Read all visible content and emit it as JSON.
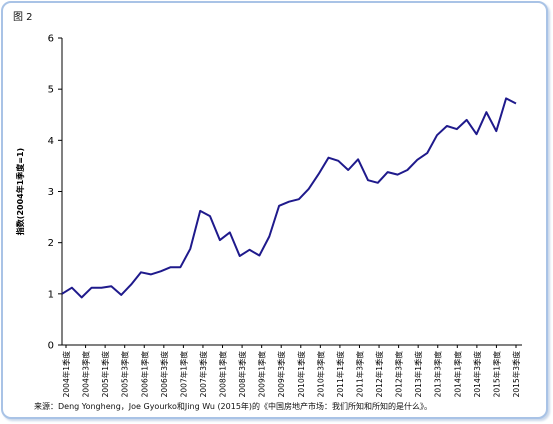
{
  "figure_label": "图 2",
  "source_note": "来源：Deng Yongheng，Joe Gyourko和Jing Wu (2015年)的《中国房地产市场：我们所知和所知的是什么》。",
  "chart_data": {
    "type": "line",
    "title": "",
    "xlabel": "",
    "ylabel": "指数(2004年1季度=1)",
    "ylim": [
      0,
      6
    ],
    "yticks": [
      0,
      1,
      2,
      3,
      4,
      5,
      6
    ],
    "grid": false,
    "legend": "none",
    "line_color": "#1f1a8c",
    "x_tick_labels": [
      "2004年1季度",
      "2004年3季度",
      "2005年1季度",
      "2005年3季度",
      "2006年1季度",
      "2006年3季度",
      "2007年1季度",
      "2007年3季度",
      "2008年1季度",
      "2008年3季度",
      "2009年1季度",
      "2009年3季度",
      "2010年1季度",
      "2010年3季度",
      "2011年1季度",
      "2011年3季度",
      "2012年1季度",
      "2012年3季度",
      "2013年1季度",
      "2013年3季度",
      "2014年1季度",
      "2014年3季度",
      "2015年1季度",
      "2015年3季度"
    ],
    "series": [
      {
        "values": [
          1.0,
          1.12,
          0.93,
          1.12,
          1.12,
          1.15,
          0.98,
          1.18,
          1.42,
          1.38,
          1.44,
          1.52,
          1.52,
          1.88,
          2.62,
          2.52,
          2.05,
          2.2,
          1.74,
          1.86,
          1.75,
          2.12,
          2.72,
          2.8,
          2.85,
          3.05,
          3.34,
          3.66,
          3.6,
          3.42,
          3.63,
          3.22,
          3.17,
          3.38,
          3.33,
          3.42,
          3.62,
          3.75,
          4.1,
          4.28,
          4.22,
          4.4,
          4.12,
          4.55,
          4.18,
          4.82,
          4.72
        ]
      }
    ]
  }
}
